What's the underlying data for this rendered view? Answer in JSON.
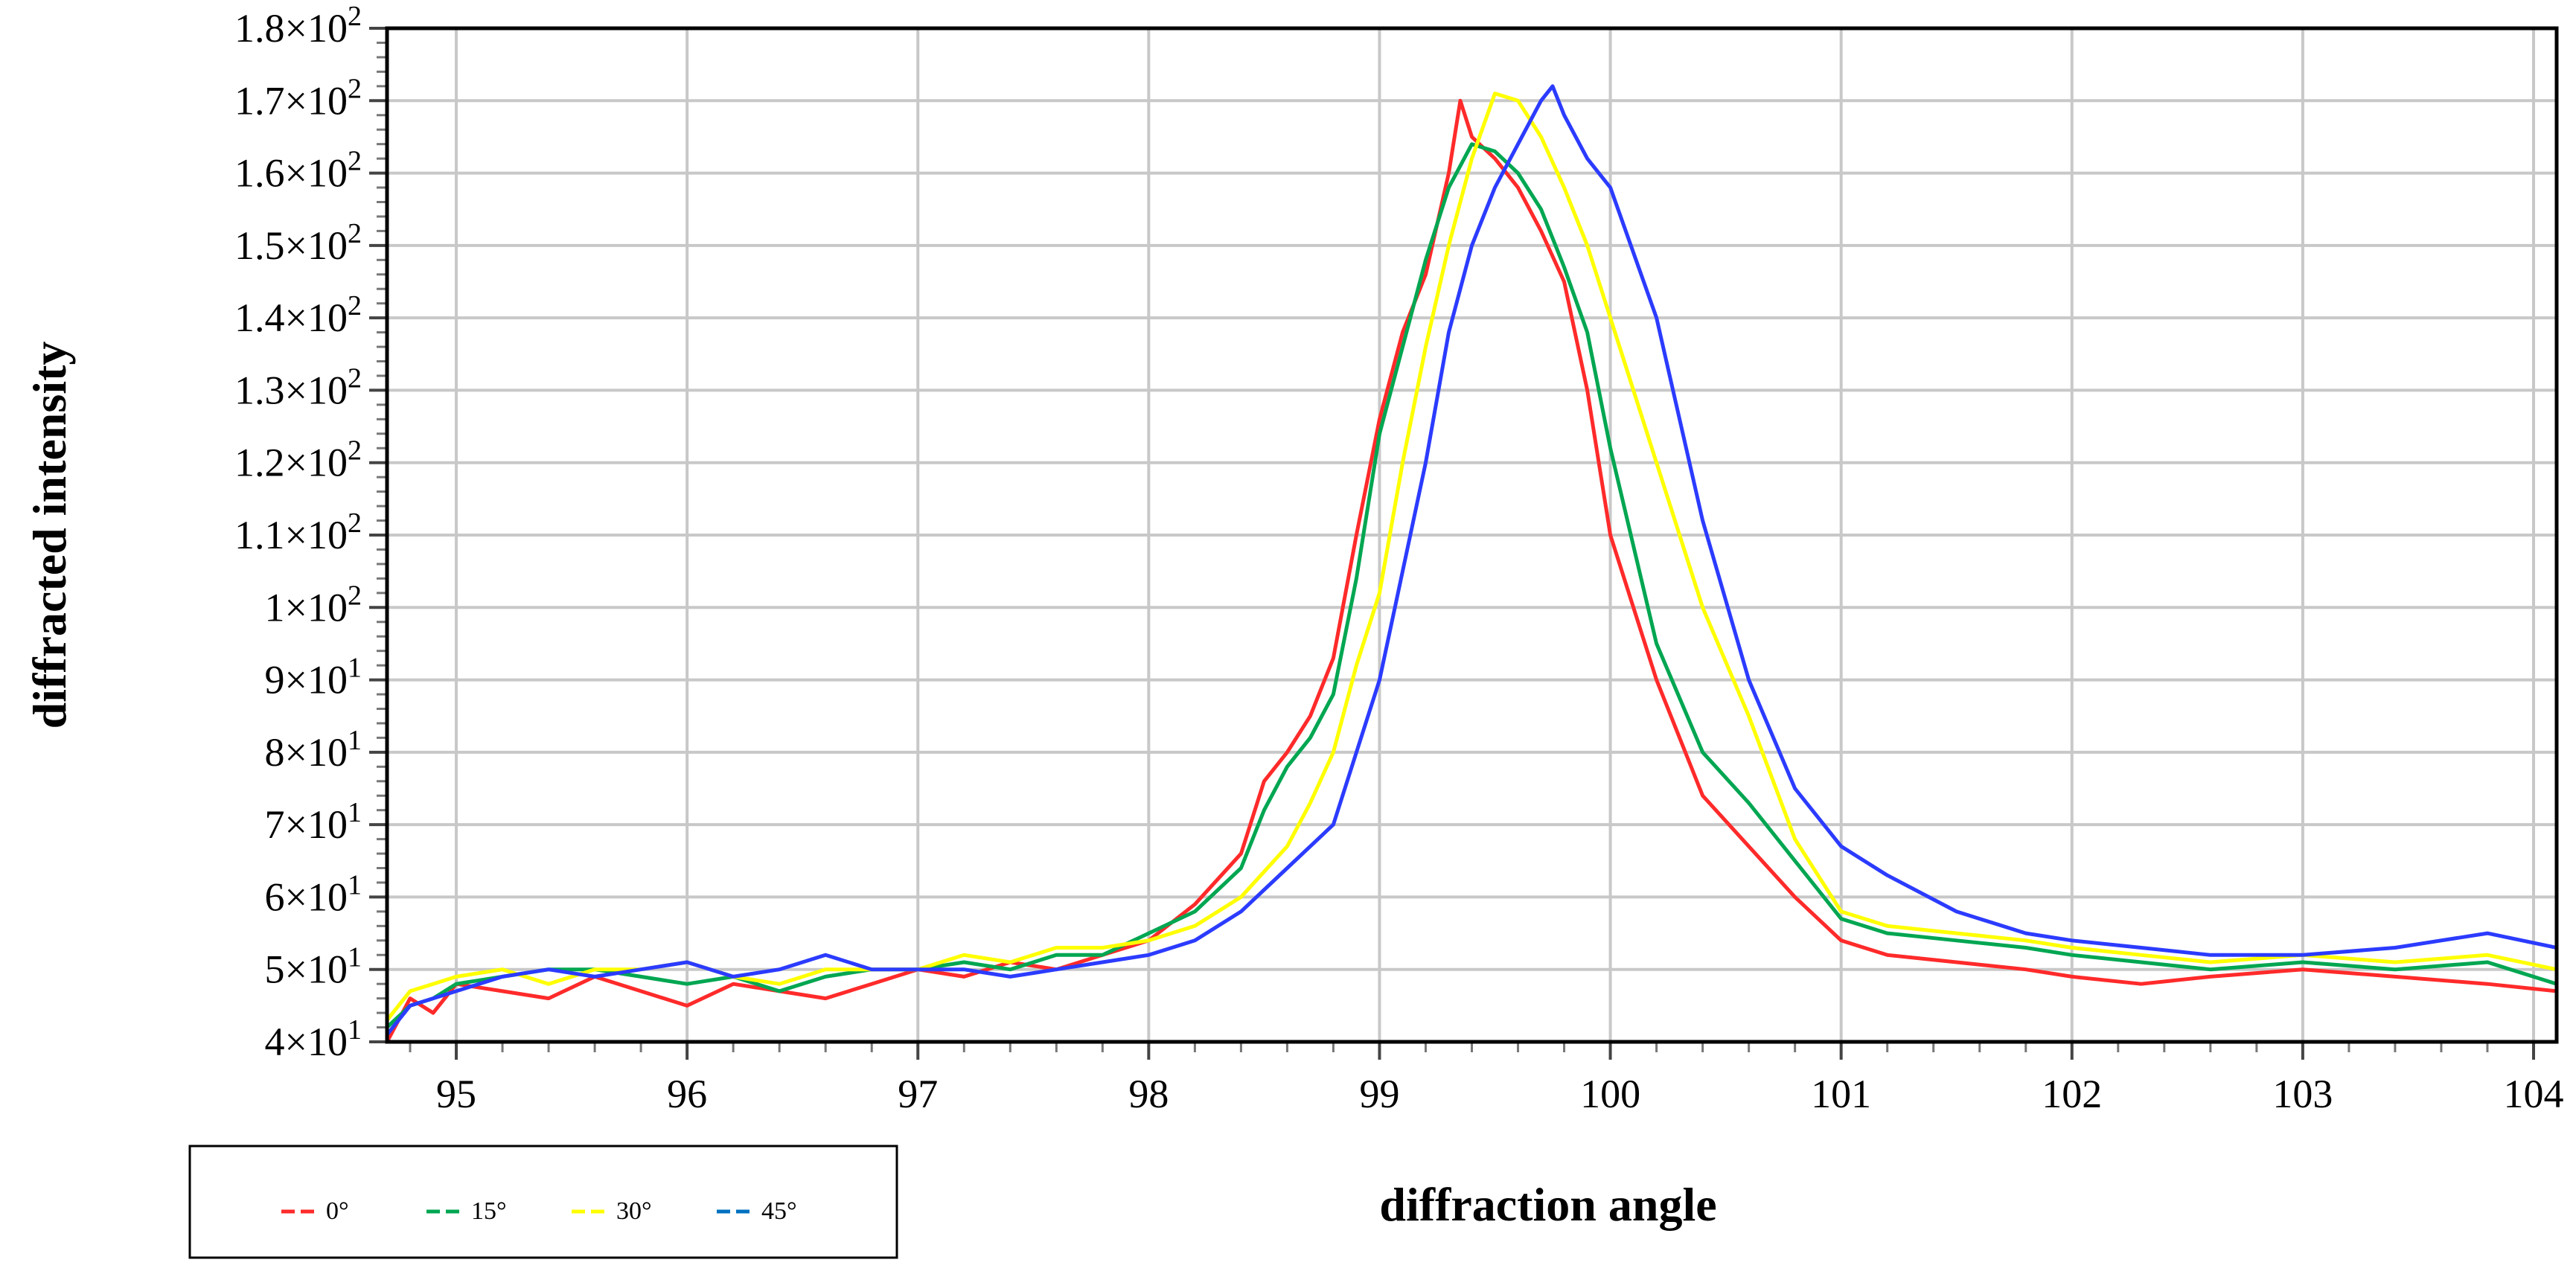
{
  "chart_data": {
    "type": "line",
    "title": "",
    "xlabel": "diffraction  angle",
    "ylabel": "diffracted   intensity",
    "xlim": [
      94.7,
      104.1
    ],
    "ylim": [
      40,
      180
    ],
    "x_minor_step": 0.2,
    "y_minor_step": 2,
    "grid": true,
    "legend_position": "bottom-left",
    "xticks": [
      {
        "value": 95,
        "label": "95"
      },
      {
        "value": 96,
        "label": "96"
      },
      {
        "value": 97,
        "label": "97"
      },
      {
        "value": 98,
        "label": "98"
      },
      {
        "value": 99,
        "label": "99"
      },
      {
        "value": 100,
        "label": "100"
      },
      {
        "value": 101,
        "label": "101"
      },
      {
        "value": 102,
        "label": "102"
      },
      {
        "value": 103,
        "label": "103"
      },
      {
        "value": 104,
        "label": "104"
      }
    ],
    "yticks": [
      {
        "value": 40,
        "mant": "4",
        "exp": "1"
      },
      {
        "value": 50,
        "mant": "5",
        "exp": "1"
      },
      {
        "value": 60,
        "mant": "6",
        "exp": "1"
      },
      {
        "value": 70,
        "mant": "7",
        "exp": "1"
      },
      {
        "value": 80,
        "mant": "8",
        "exp": "1"
      },
      {
        "value": 90,
        "mant": "9",
        "exp": "1"
      },
      {
        "value": 100,
        "mant": "1",
        "exp": "2"
      },
      {
        "value": 110,
        "mant": "1.1",
        "exp": "2"
      },
      {
        "value": 120,
        "mant": "1.2",
        "exp": "2"
      },
      {
        "value": 130,
        "mant": "1.3",
        "exp": "2"
      },
      {
        "value": 140,
        "mant": "1.4",
        "exp": "2"
      },
      {
        "value": 150,
        "mant": "1.5",
        "exp": "2"
      },
      {
        "value": 160,
        "mant": "1.6",
        "exp": "2"
      },
      {
        "value": 170,
        "mant": "1.7",
        "exp": "2"
      },
      {
        "value": 180,
        "mant": "1.8",
        "exp": "2"
      }
    ],
    "series": [
      {
        "name": "0°",
        "color": "#ff2a2a",
        "x": [
          94.7,
          94.8,
          94.9,
          95.0,
          95.2,
          95.4,
          95.6,
          95.8,
          96.0,
          96.2,
          96.4,
          96.6,
          96.8,
          97.0,
          97.2,
          97.4,
          97.6,
          97.8,
          98.0,
          98.2,
          98.4,
          98.5,
          98.6,
          98.7,
          98.8,
          98.9,
          99.0,
          99.1,
          99.2,
          99.3,
          99.35,
          99.4,
          99.5,
          99.6,
          99.7,
          99.8,
          99.9,
          100.0,
          100.2,
          100.4,
          100.6,
          100.8,
          101.0,
          101.2,
          101.5,
          101.8,
          102.0,
          102.3,
          102.6,
          103.0,
          103.4,
          103.8,
          104.1
        ],
        "y": [
          40,
          46,
          44,
          48,
          47,
          46,
          49,
          47,
          45,
          48,
          47,
          46,
          48,
          50,
          49,
          51,
          50,
          52,
          54,
          59,
          66,
          76,
          80,
          85,
          93,
          110,
          126,
          138,
          146,
          160,
          170,
          165,
          162,
          158,
          152,
          145,
          130,
          110,
          90,
          74,
          67,
          60,
          54,
          52,
          51,
          50,
          49,
          48,
          49,
          50,
          49,
          48,
          47
        ]
      },
      {
        "name": "15°",
        "color": "#00a651",
        "x": [
          94.7,
          94.8,
          94.9,
          95.0,
          95.2,
          95.4,
          95.6,
          95.8,
          96.0,
          96.2,
          96.4,
          96.6,
          96.8,
          97.0,
          97.2,
          97.4,
          97.6,
          97.8,
          98.0,
          98.2,
          98.4,
          98.5,
          98.6,
          98.7,
          98.8,
          98.9,
          99.0,
          99.1,
          99.2,
          99.3,
          99.4,
          99.5,
          99.6,
          99.7,
          99.8,
          99.9,
          100.0,
          100.2,
          100.4,
          100.6,
          100.8,
          101.0,
          101.2,
          101.5,
          101.8,
          102.0,
          102.3,
          102.6,
          103.0,
          103.4,
          103.8,
          104.1
        ],
        "y": [
          42,
          45,
          46,
          48,
          49,
          50,
          50,
          49,
          48,
          49,
          47,
          49,
          50,
          50,
          51,
          50,
          52,
          52,
          55,
          58,
          64,
          72,
          78,
          82,
          88,
          104,
          124,
          136,
          148,
          158,
          164,
          163,
          160,
          155,
          147,
          138,
          122,
          95,
          80,
          73,
          65,
          57,
          55,
          54,
          53,
          52,
          51,
          50,
          51,
          50,
          51,
          48
        ]
      },
      {
        "name": "30°",
        "color": "#ffff00",
        "x": [
          94.7,
          94.8,
          94.9,
          95.0,
          95.2,
          95.4,
          95.6,
          95.8,
          96.0,
          96.2,
          96.4,
          96.6,
          96.8,
          97.0,
          97.2,
          97.4,
          97.6,
          97.8,
          98.0,
          98.2,
          98.4,
          98.6,
          98.7,
          98.8,
          98.9,
          99.0,
          99.1,
          99.2,
          99.3,
          99.4,
          99.5,
          99.6,
          99.7,
          99.8,
          99.9,
          100.0,
          100.2,
          100.4,
          100.6,
          100.8,
          101.0,
          101.2,
          101.5,
          101.8,
          102.0,
          102.3,
          102.6,
          103.0,
          103.4,
          103.8,
          104.1
        ],
        "y": [
          43,
          47,
          48,
          49,
          50,
          48,
          50,
          50,
          51,
          49,
          48,
          50,
          50,
          50,
          52,
          51,
          53,
          53,
          54,
          56,
          60,
          67,
          73,
          80,
          92,
          102,
          120,
          136,
          150,
          162,
          171,
          170,
          165,
          158,
          150,
          140,
          120,
          100,
          85,
          68,
          58,
          56,
          55,
          54,
          53,
          52,
          51,
          52,
          51,
          52,
          50
        ]
      },
      {
        "name": "45°",
        "color": "#2b3bff",
        "legend_color": "#0070c0",
        "x": [
          94.7,
          94.8,
          94.9,
          95.0,
          95.2,
          95.4,
          95.6,
          95.8,
          96.0,
          96.2,
          96.4,
          96.6,
          96.8,
          97.0,
          97.2,
          97.4,
          97.6,
          97.8,
          98.0,
          98.2,
          98.4,
          98.6,
          98.8,
          99.0,
          99.2,
          99.3,
          99.4,
          99.5,
          99.6,
          99.7,
          99.75,
          99.8,
          99.9,
          100.0,
          100.2,
          100.4,
          100.6,
          100.8,
          101.0,
          101.2,
          101.5,
          101.8,
          102.0,
          102.3,
          102.6,
          103.0,
          103.4,
          103.8,
          104.1
        ],
        "y": [
          41,
          45,
          46,
          47,
          49,
          50,
          49,
          50,
          51,
          49,
          50,
          52,
          50,
          50,
          50,
          49,
          50,
          51,
          52,
          54,
          58,
          64,
          70,
          90,
          120,
          138,
          150,
          158,
          164,
          170,
          172,
          168,
          162,
          158,
          140,
          112,
          90,
          75,
          67,
          63,
          58,
          55,
          54,
          53,
          52,
          52,
          53,
          55,
          53
        ]
      }
    ]
  }
}
